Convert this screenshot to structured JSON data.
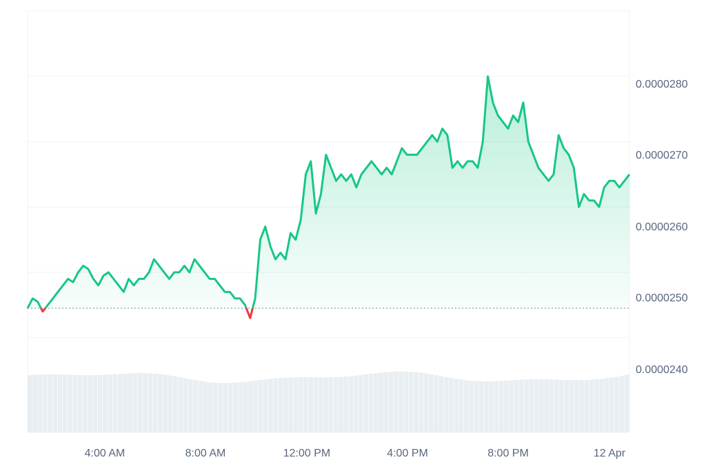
{
  "chart_data": {
    "type": "area",
    "title": "",
    "xlabel": "",
    "ylabel": "",
    "x_ticks": [
      "4:00 AM",
      "8:00 AM",
      "12:00 PM",
      "4:00 PM",
      "8:00 PM",
      "12 Apr"
    ],
    "y_ticks": [
      "0.0000280",
      "0.0000270",
      "0.0000260",
      "0.0000250",
      "0.0000240"
    ],
    "ylim": [
      2.35e-05,
      2.9e-05
    ],
    "baseline": 2.445e-05,
    "grid": true,
    "legend": "none",
    "colors": {
      "up": "#16c784",
      "down": "#ea3943",
      "grid": "#eff2f5",
      "axis_text": "#58667e",
      "volume": "#e9eef2"
    },
    "series": [
      {
        "values": [
          2.445e-05,
          2.46e-05,
          2.455e-05,
          2.44e-05,
          2.45e-05,
          2.46e-05,
          2.47e-05,
          2.48e-05,
          2.49e-05,
          2.485e-05,
          2.5e-05,
          2.51e-05,
          2.505e-05,
          2.49e-05,
          2.48e-05,
          2.495e-05,
          2.5e-05,
          2.49e-05,
          2.48e-05,
          2.47e-05,
          2.49e-05,
          2.48e-05,
          2.49e-05,
          2.49e-05,
          2.5e-05,
          2.52e-05,
          2.51e-05,
          2.5e-05,
          2.49e-05,
          2.5e-05,
          2.5e-05,
          2.51e-05,
          2.5e-05,
          2.52e-05,
          2.51e-05,
          2.5e-05,
          2.49e-05,
          2.49e-05,
          2.48e-05,
          2.47e-05,
          2.47e-05,
          2.46e-05,
          2.46e-05,
          2.45e-05,
          2.43e-05,
          2.46e-05,
          2.55e-05,
          2.57e-05,
          2.54e-05,
          2.52e-05,
          2.53e-05,
          2.52e-05,
          2.56e-05,
          2.55e-05,
          2.58e-05,
          2.65e-05,
          2.67e-05,
          2.59e-05,
          2.62e-05,
          2.68e-05,
          2.66e-05,
          2.64e-05,
          2.65e-05,
          2.64e-05,
          2.65e-05,
          2.63e-05,
          2.65e-05,
          2.66e-05,
          2.67e-05,
          2.66e-05,
          2.65e-05,
          2.66e-05,
          2.65e-05,
          2.67e-05,
          2.69e-05,
          2.68e-05,
          2.68e-05,
          2.68e-05,
          2.69e-05,
          2.7e-05,
          2.71e-05,
          2.7e-05,
          2.72e-05,
          2.71e-05,
          2.66e-05,
          2.67e-05,
          2.66e-05,
          2.67e-05,
          2.67e-05,
          2.66e-05,
          2.7e-05,
          2.8e-05,
          2.76e-05,
          2.74e-05,
          2.73e-05,
          2.72e-05,
          2.74e-05,
          2.73e-05,
          2.76e-05,
          2.7e-05,
          2.68e-05,
          2.66e-05,
          2.65e-05,
          2.64e-05,
          2.65e-05,
          2.71e-05,
          2.69e-05,
          2.68e-05,
          2.66e-05,
          2.6e-05,
          2.62e-05,
          2.61e-05,
          2.61e-05,
          2.6e-05,
          2.63e-05,
          2.64e-05,
          2.64e-05,
          2.63e-05,
          2.64e-05,
          2.65e-05
        ]
      }
    ]
  }
}
